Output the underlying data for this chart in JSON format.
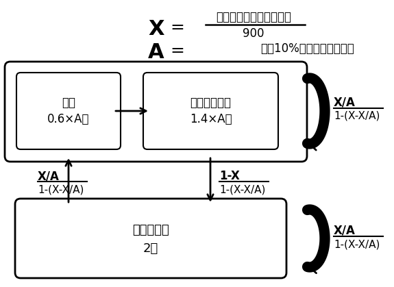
{
  "bg_color": "#ffffff",
  "title_x_bold": "X",
  "title_x_eq": "=",
  "title_x_formula_num": "凝視していたフレーム数",
  "title_x_formula_den": "900",
  "title_a_bold": "A",
  "title_a_eq": "=",
  "title_a_text": "凝視10%ごとに決めた定数",
  "box_gaze_line1": "凝視",
  "box_gaze_line2": "0.6×A秒",
  "box_vague_line1": "あいまい注視",
  "box_vague_line2": "1.4×A秒",
  "box_look_away_line1": "視線そらし",
  "box_look_away_line2": "2秒",
  "prob_top_right_num": "X/A",
  "prob_top_right_den": "1-(X-X/A)",
  "prob_left_num": "X/A",
  "prob_left_den": "1-(X-X/A)",
  "prob_mid_num": "1-X",
  "prob_mid_den": "1-(X-X/A)",
  "prob_bottom_right_num": "X/A",
  "prob_bottom_right_den": "1-(X-X/A)"
}
